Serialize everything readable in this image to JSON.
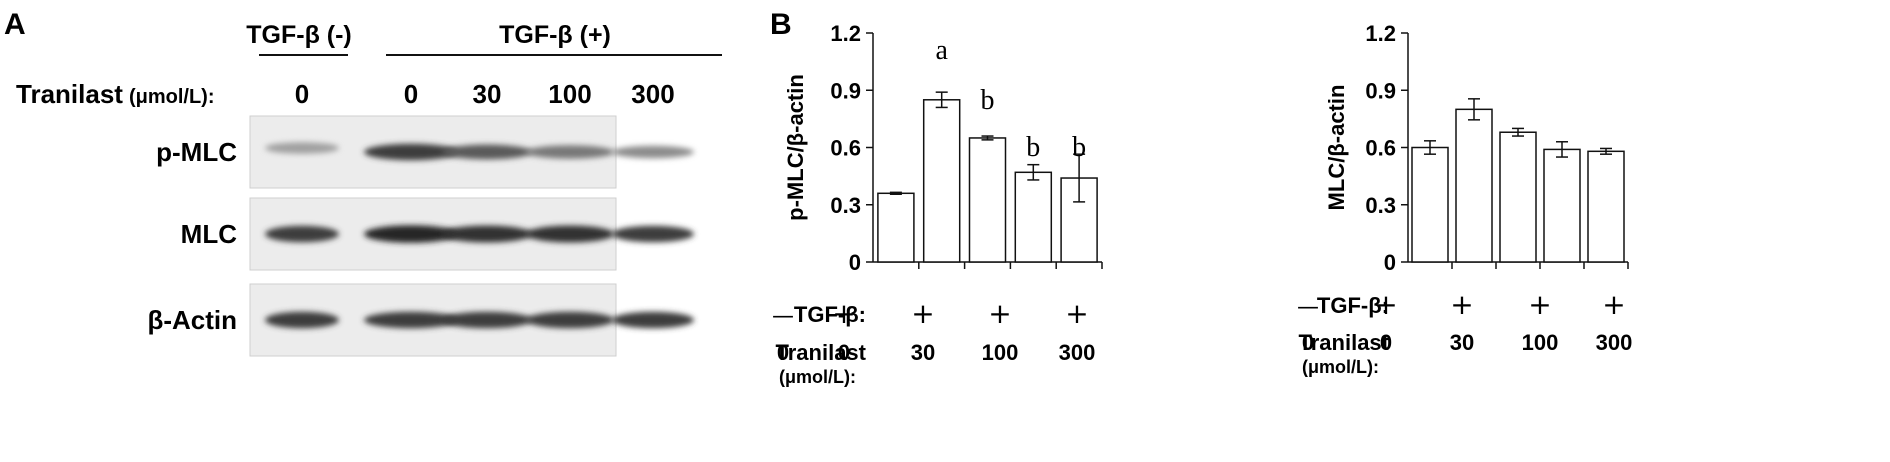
{
  "panel_a": {
    "label": "A",
    "group_neg": "TGF-β (-)",
    "group_pos": "TGF-β (+)",
    "tranilast_label": "Tranilast",
    "tranilast_unit": "(μmol/L):",
    "doses": [
      "0",
      "0",
      "30",
      "100",
      "300"
    ],
    "blots": [
      {
        "label": "p-MLC",
        "intensity": [
          0.35,
          0.85,
          0.7,
          0.55,
          0.45
        ]
      },
      {
        "label": "MLC",
        "intensity": [
          0.85,
          0.95,
          0.9,
          0.9,
          0.85
        ]
      },
      {
        "label": "β-Actin",
        "intensity": [
          0.85,
          0.85,
          0.85,
          0.85,
          0.85
        ]
      }
    ]
  },
  "panel_b": {
    "label": "B",
    "row_tgf_label": "TGF-β:",
    "row_tranilast_label": "Tranilast",
    "row_tranilast_unit": "(μmol/L):",
    "tgf_signs": [
      "—",
      "+",
      "+",
      "+",
      "+"
    ],
    "tranilast_doses": [
      "0",
      "0",
      "30",
      "100",
      "300"
    ]
  },
  "chart_data": [
    {
      "type": "bar",
      "ylabel": "p-MLC/β-actin",
      "ylim": [
        0,
        1.2
      ],
      "yticks": [
        "0",
        "0.3",
        "0.6",
        "0.9",
        "1.2"
      ],
      "categories": [
        "0",
        "0",
        "30",
        "100",
        "300"
      ],
      "values": [
        0.36,
        0.85,
        0.65,
        0.47,
        0.44
      ],
      "errors": [
        0.005,
        0.04,
        0.01,
        0.04,
        0.125
      ],
      "annotations": [
        "",
        "a",
        "b",
        "b",
        "b"
      ]
    },
    {
      "type": "bar",
      "ylabel": "MLC/β-actin",
      "ylim": [
        0,
        1.2
      ],
      "yticks": [
        "0",
        "0.3",
        "0.6",
        "0.9",
        "1.2"
      ],
      "categories": [
        "0",
        "0",
        "30",
        "100",
        "300"
      ],
      "values": [
        0.6,
        0.8,
        0.68,
        0.59,
        0.58
      ],
      "errors": [
        0.035,
        0.055,
        0.02,
        0.04,
        0.015
      ],
      "annotations": [
        "",
        "",
        "",
        "",
        ""
      ]
    }
  ]
}
